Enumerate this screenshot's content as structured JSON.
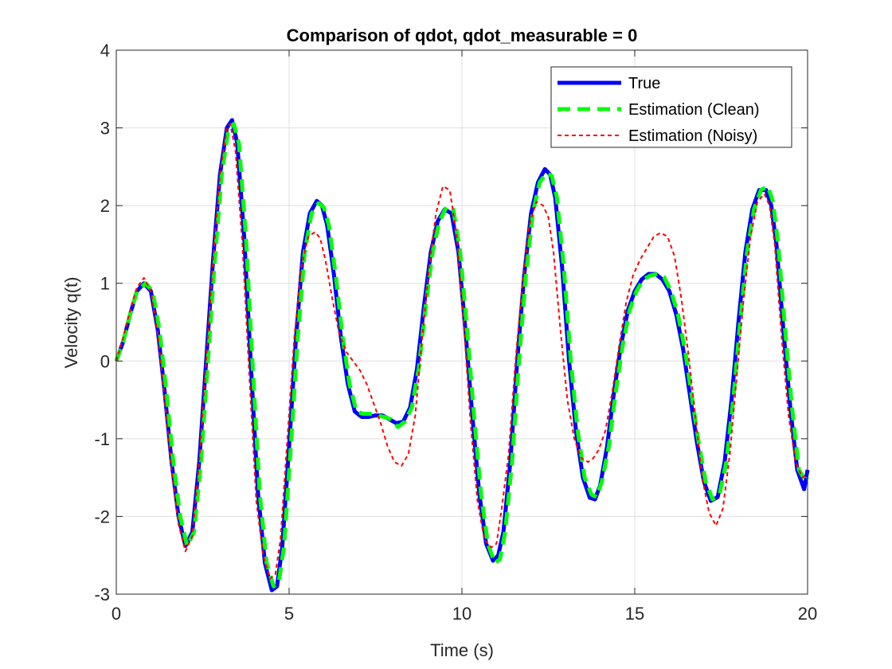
{
  "chart_data": {
    "type": "line",
    "title": "Comparison of qdot, qdot_measurable = 0",
    "xlabel": "Time (s)",
    "ylabel": "Velocity q(t)",
    "xlim": [
      0,
      20
    ],
    "ylim": [
      -3,
      4
    ],
    "xticks": [
      0,
      5,
      10,
      15,
      20
    ],
    "xtick_labels": [
      "0",
      "5",
      "10",
      "15",
      "20"
    ],
    "yticks": [
      -3,
      -2,
      -1,
      0,
      1,
      2,
      3,
      4
    ],
    "ytick_labels": [
      "-3",
      "-2",
      "-1",
      "0",
      "1",
      "2",
      "3",
      "4"
    ],
    "grid": true,
    "legend_position": "top-right",
    "series": [
      {
        "name": "True",
        "color": "#0000ff",
        "style": "solid",
        "x": [
          0,
          0.2,
          0.4,
          0.6,
          0.8,
          1.0,
          1.2,
          1.4,
          1.6,
          1.8,
          2.0,
          2.2,
          2.4,
          2.6,
          2.8,
          3.0,
          3.2,
          3.35,
          3.5,
          3.7,
          3.9,
          4.1,
          4.3,
          4.5,
          4.65,
          4.8,
          5.0,
          5.2,
          5.4,
          5.6,
          5.8,
          5.95,
          6.1,
          6.3,
          6.5,
          6.7,
          6.9,
          7.1,
          7.3,
          7.5,
          7.7,
          7.9,
          8.1,
          8.3,
          8.5,
          8.7,
          8.9,
          9.1,
          9.3,
          9.5,
          9.7,
          9.9,
          10.1,
          10.3,
          10.5,
          10.7,
          10.9,
          11.05,
          11.2,
          11.4,
          11.6,
          11.8,
          12.0,
          12.2,
          12.4,
          12.55,
          12.7,
          12.9,
          13.1,
          13.3,
          13.5,
          13.7,
          13.85,
          14.0,
          14.2,
          14.4,
          14.6,
          14.8,
          15.0,
          15.2,
          15.4,
          15.6,
          15.8,
          16.0,
          16.2,
          16.4,
          16.6,
          16.8,
          17.0,
          17.2,
          17.4,
          17.6,
          17.8,
          18.0,
          18.2,
          18.4,
          18.6,
          18.8,
          18.95,
          19.1,
          19.3,
          19.5,
          19.7,
          19.9,
          20.0
        ],
        "y": [
          0,
          0.25,
          0.6,
          0.9,
          1.0,
          0.9,
          0.4,
          -0.4,
          -1.3,
          -2.0,
          -2.38,
          -2.2,
          -1.3,
          0.0,
          1.3,
          2.4,
          3.0,
          3.1,
          2.8,
          1.6,
          -0.1,
          -1.7,
          -2.6,
          -2.95,
          -2.9,
          -2.4,
          -1.1,
          0.3,
          1.4,
          1.9,
          2.06,
          2.0,
          1.75,
          1.1,
          0.3,
          -0.3,
          -0.65,
          -0.72,
          -0.72,
          -0.7,
          -0.7,
          -0.75,
          -0.8,
          -0.78,
          -0.6,
          -0.1,
          0.7,
          1.4,
          1.8,
          1.95,
          1.9,
          1.4,
          0.4,
          -0.7,
          -1.7,
          -2.35,
          -2.57,
          -2.5,
          -2.2,
          -1.3,
          0.0,
          1.1,
          1.9,
          2.3,
          2.47,
          2.4,
          2.1,
          1.2,
          0.0,
          -0.9,
          -1.5,
          -1.76,
          -1.78,
          -1.6,
          -1.1,
          -0.4,
          0.2,
          0.65,
          0.9,
          1.05,
          1.12,
          1.12,
          1.05,
          0.9,
          0.6,
          0.15,
          -0.45,
          -1.05,
          -1.55,
          -1.8,
          -1.75,
          -1.3,
          -0.5,
          0.5,
          1.4,
          1.95,
          2.2,
          2.2,
          2.0,
          1.5,
          0.4,
          -0.6,
          -1.4,
          -1.65,
          -1.4
        ]
      },
      {
        "name": "Estimation (Clean)",
        "color": "#00ff00",
        "style": "dashed",
        "x": [
          0,
          0.2,
          0.4,
          0.6,
          0.85,
          1.05,
          1.25,
          1.45,
          1.65,
          1.85,
          2.05,
          2.25,
          2.45,
          2.65,
          2.85,
          3.05,
          3.25,
          3.4,
          3.55,
          3.75,
          3.95,
          4.15,
          4.35,
          4.55,
          4.7,
          4.85,
          5.05,
          5.25,
          5.45,
          5.65,
          5.85,
          6.0,
          6.15,
          6.35,
          6.55,
          6.75,
          6.95,
          7.15,
          7.35,
          7.55,
          7.75,
          7.95,
          8.15,
          8.35,
          8.55,
          8.75,
          8.95,
          9.15,
          9.35,
          9.55,
          9.75,
          9.95,
          10.15,
          10.35,
          10.55,
          10.75,
          10.95,
          11.1,
          11.25,
          11.45,
          11.65,
          11.85,
          12.05,
          12.25,
          12.45,
          12.6,
          12.75,
          12.95,
          13.15,
          13.35,
          13.55,
          13.75,
          13.9,
          14.05,
          14.25,
          14.45,
          14.65,
          14.85,
          15.05,
          15.25,
          15.45,
          15.65,
          15.85,
          16.05,
          16.25,
          16.45,
          16.65,
          16.85,
          17.05,
          17.25,
          17.45,
          17.65,
          17.85,
          18.05,
          18.25,
          18.45,
          18.65,
          18.85,
          19.0,
          19.15,
          19.35,
          19.55,
          19.75,
          19.95,
          20.0
        ],
        "y": [
          0,
          0.25,
          0.6,
          0.9,
          1.0,
          0.9,
          0.4,
          -0.4,
          -1.3,
          -2.0,
          -2.38,
          -2.2,
          -1.3,
          0.0,
          1.3,
          2.4,
          3.0,
          3.05,
          2.8,
          1.6,
          -0.1,
          -1.7,
          -2.6,
          -2.9,
          -2.85,
          -2.4,
          -1.1,
          0.3,
          1.4,
          1.9,
          2.03,
          1.98,
          1.75,
          1.1,
          0.3,
          -0.3,
          -0.65,
          -0.68,
          -0.68,
          -0.7,
          -0.72,
          -0.75,
          -0.85,
          -0.78,
          -0.6,
          -0.1,
          0.7,
          1.4,
          1.8,
          1.98,
          1.95,
          1.4,
          0.4,
          -0.7,
          -1.7,
          -2.35,
          -2.6,
          -2.55,
          -2.2,
          -1.3,
          0.0,
          1.1,
          1.9,
          2.3,
          2.42,
          2.38,
          2.1,
          1.2,
          0.0,
          -0.9,
          -1.5,
          -1.72,
          -1.75,
          -1.55,
          -1.1,
          -0.4,
          0.2,
          0.65,
          0.9,
          1.05,
          1.1,
          1.12,
          1.08,
          0.9,
          0.6,
          0.15,
          -0.45,
          -1.05,
          -1.55,
          -1.78,
          -1.72,
          -1.3,
          -0.5,
          0.5,
          1.4,
          1.95,
          2.2,
          2.25,
          2.05,
          1.5,
          0.4,
          -0.6,
          -1.4,
          -1.55,
          -1.5
        ]
      },
      {
        "name": "Estimation (Noisy)",
        "color": "#ff0000",
        "style": "dotted",
        "x": [
          0,
          0.2,
          0.4,
          0.6,
          0.8,
          1.0,
          1.2,
          1.4,
          1.6,
          1.8,
          2.0,
          2.2,
          2.4,
          2.6,
          2.8,
          3.0,
          3.2,
          3.3,
          3.45,
          3.65,
          3.85,
          4.05,
          4.25,
          4.45,
          4.6,
          4.75,
          4.95,
          5.15,
          5.35,
          5.55,
          5.75,
          5.9,
          6.05,
          6.25,
          6.45,
          6.65,
          6.85,
          7.05,
          7.25,
          7.45,
          7.65,
          7.85,
          8.05,
          8.25,
          8.45,
          8.65,
          8.85,
          9.05,
          9.25,
          9.45,
          9.65,
          9.85,
          10.05,
          10.25,
          10.45,
          10.65,
          10.85,
          11.0,
          11.15,
          11.35,
          11.55,
          11.75,
          11.95,
          12.15,
          12.35,
          12.5,
          12.65,
          12.85,
          13.05,
          13.25,
          13.45,
          13.65,
          13.8,
          13.95,
          14.15,
          14.35,
          14.55,
          14.75,
          14.95,
          15.15,
          15.35,
          15.55,
          15.75,
          15.95,
          16.15,
          16.35,
          16.55,
          16.75,
          16.95,
          17.15,
          17.35,
          17.55,
          17.75,
          17.95,
          18.15,
          18.35,
          18.55,
          18.75,
          18.9,
          19.05,
          19.25,
          19.45,
          19.65,
          19.85,
          20.0
        ],
        "y": [
          0,
          0.3,
          0.65,
          0.95,
          1.07,
          0.9,
          0.35,
          -0.5,
          -1.4,
          -2.1,
          -2.45,
          -2.25,
          -1.3,
          0.0,
          1.3,
          2.4,
          3.0,
          3.05,
          2.7,
          1.5,
          -0.2,
          -1.8,
          -2.5,
          -2.8,
          -2.75,
          -2.3,
          -1.0,
          0.3,
          1.2,
          1.6,
          1.66,
          1.58,
          1.3,
          0.8,
          0.35,
          0.12,
          0.0,
          -0.12,
          -0.3,
          -0.55,
          -0.8,
          -1.1,
          -1.3,
          -1.35,
          -1.2,
          -0.7,
          0.3,
          1.2,
          1.9,
          2.25,
          2.2,
          1.6,
          0.5,
          -0.8,
          -1.8,
          -2.3,
          -2.4,
          -2.35,
          -1.9,
          -1.2,
          0.0,
          1.0,
          1.75,
          2.05,
          2.0,
          1.85,
          1.4,
          0.4,
          -0.5,
          -1.0,
          -1.25,
          -1.3,
          -1.25,
          -1.15,
          -0.9,
          -0.4,
          0.2,
          0.75,
          1.1,
          1.3,
          1.45,
          1.6,
          1.65,
          1.6,
          1.35,
          0.8,
          0.1,
          -0.7,
          -1.5,
          -1.95,
          -2.12,
          -1.9,
          -1.2,
          -0.2,
          0.8,
          1.6,
          2.05,
          2.15,
          2.0,
          1.5,
          0.3,
          -0.7,
          -1.3,
          -1.5,
          -1.45
        ]
      }
    ]
  }
}
